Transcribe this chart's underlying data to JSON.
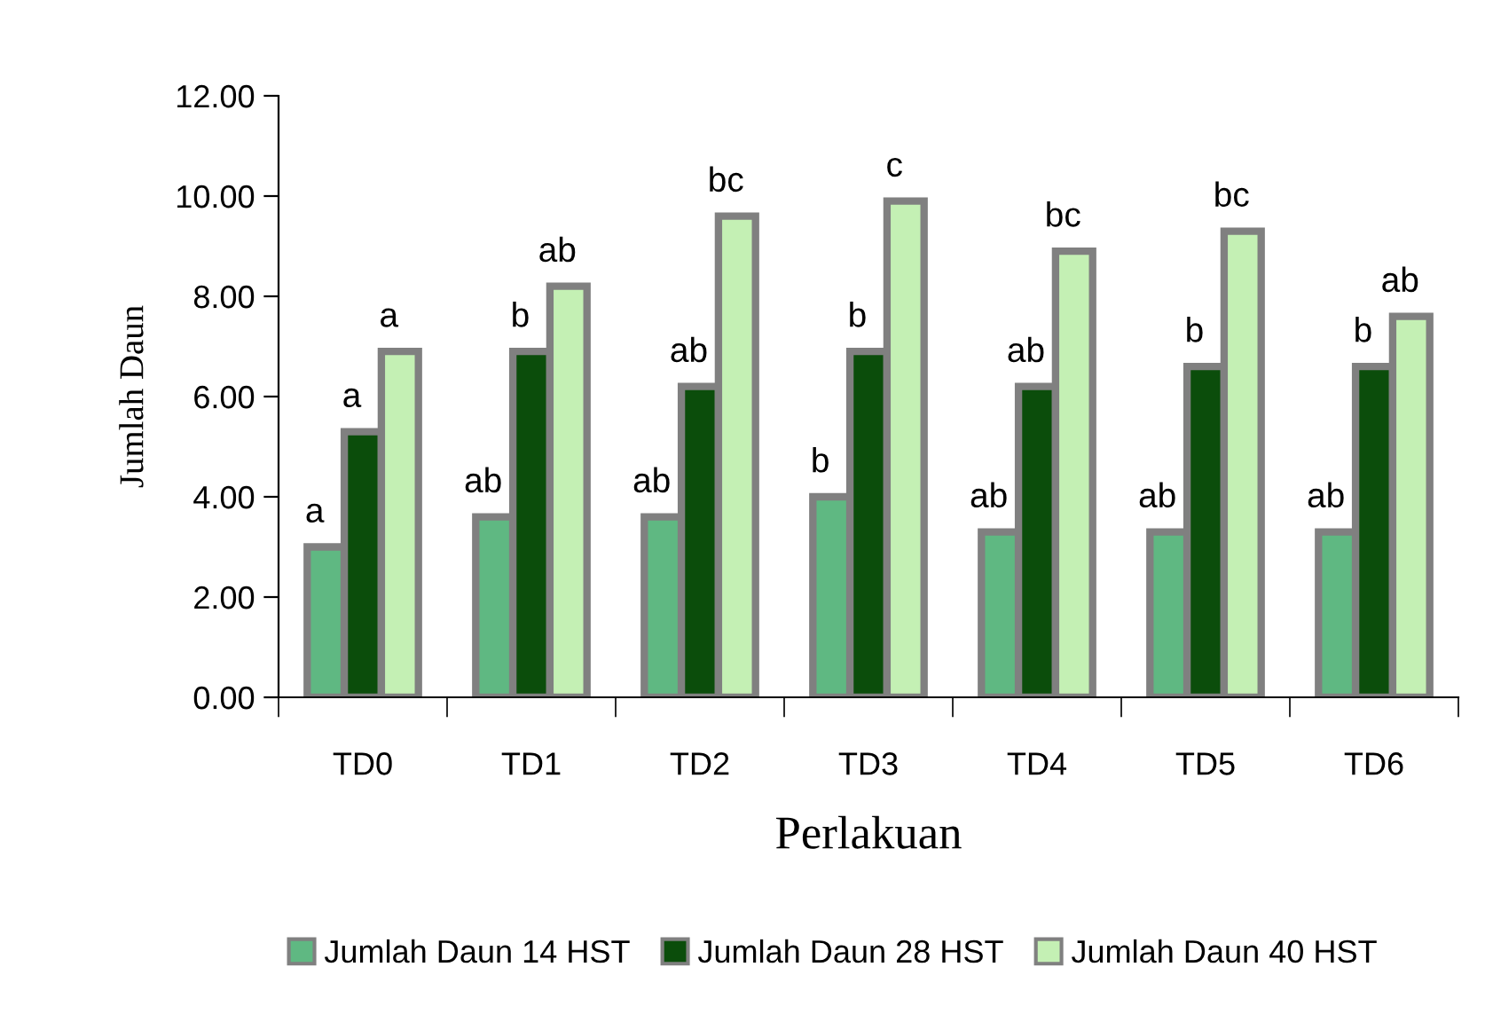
{
  "chart_data": {
    "type": "bar",
    "xlabel": "Perlakuan",
    "ylabel": "Jumlah Daun",
    "categories": [
      "TD0",
      "TD1",
      "TD2",
      "TD3",
      "TD4",
      "TD5",
      "TD6"
    ],
    "series": [
      {
        "name": "Jumlah Daun 14 HST",
        "color": "#5fb882",
        "values": [
          3.0,
          3.6,
          3.6,
          4.0,
          3.3,
          3.3,
          3.3
        ],
        "value_labels": [
          "a",
          "ab",
          "ab",
          "b",
          "ab",
          "ab",
          "ab"
        ]
      },
      {
        "name": "Jumlah Daun 28 HST",
        "color": "#0b4d0b",
        "values": [
          5.3,
          6.9,
          6.2,
          6.9,
          6.2,
          6.6,
          6.6
        ],
        "value_labels": [
          "a",
          "b",
          "ab",
          "b",
          "ab",
          "b",
          "b"
        ]
      },
      {
        "name": "Jumlah Daun 40 HST",
        "color": "#c4f0b4",
        "values": [
          6.9,
          8.2,
          9.6,
          9.9,
          8.9,
          9.3,
          7.6
        ],
        "value_labels": [
          "a",
          "ab",
          "bc",
          "c",
          "bc",
          "bc",
          "ab"
        ]
      }
    ],
    "ylim": [
      0,
      12
    ],
    "yticks": [
      {
        "value": 0,
        "label": "0.00"
      },
      {
        "value": 2,
        "label": "2.00"
      },
      {
        "value": 4,
        "label": "4.00"
      },
      {
        "value": 6,
        "label": "6.00"
      },
      {
        "value": 8,
        "label": "8.00"
      },
      {
        "value": 10,
        "label": "10.00"
      },
      {
        "value": 12,
        "label": "12.00"
      }
    ],
    "grid": false,
    "legend": "bottom"
  }
}
